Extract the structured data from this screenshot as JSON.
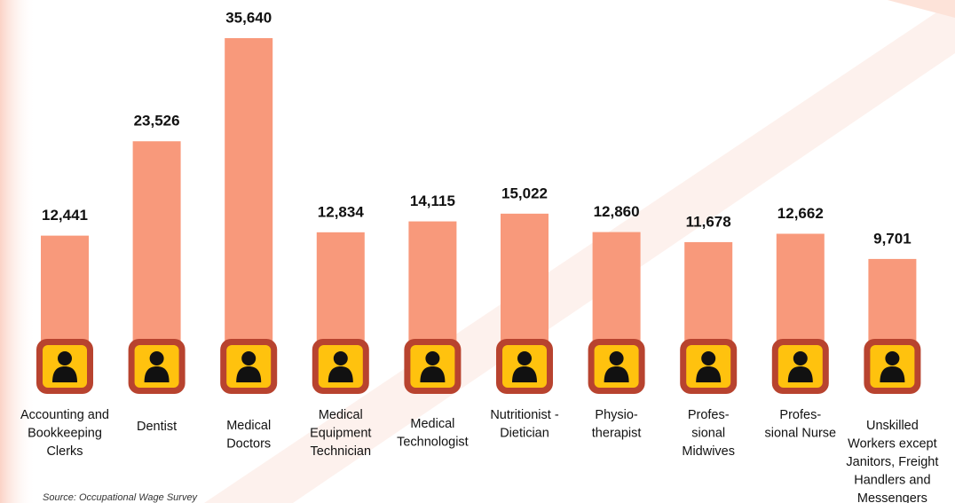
{
  "chart_data": {
    "type": "bar",
    "categories": [
      [
        "Accounting and",
        "Bookkeeping",
        "Clerks"
      ],
      [
        "Dentist"
      ],
      [
        "Medical",
        "Doctors"
      ],
      [
        "Medical",
        "Equipment",
        "Technician"
      ],
      [
        "Medical",
        "Technologist"
      ],
      [
        "Nutritionist -",
        "Dietician"
      ],
      [
        "Physio-",
        "therapist"
      ],
      [
        "Profes-",
        "sional",
        "Midwives"
      ],
      [
        "Profes-",
        "sional Nurse"
      ],
      [
        "Unskilled",
        "Workers except",
        "Janitors, Freight",
        "Handlers and",
        "Messengers"
      ]
    ],
    "values": [
      12441,
      23526,
      35640,
      12834,
      14115,
      15022,
      12860,
      11678,
      12662,
      9701
    ],
    "value_labels": [
      "12,441",
      "23,526",
      "35,640",
      "12,834",
      "14,115",
      "15,022",
      "12,860",
      "11,678",
      "12,662",
      "9,701"
    ],
    "color": "#f8997b",
    "source": "Source: Occupational Wage Survey"
  }
}
